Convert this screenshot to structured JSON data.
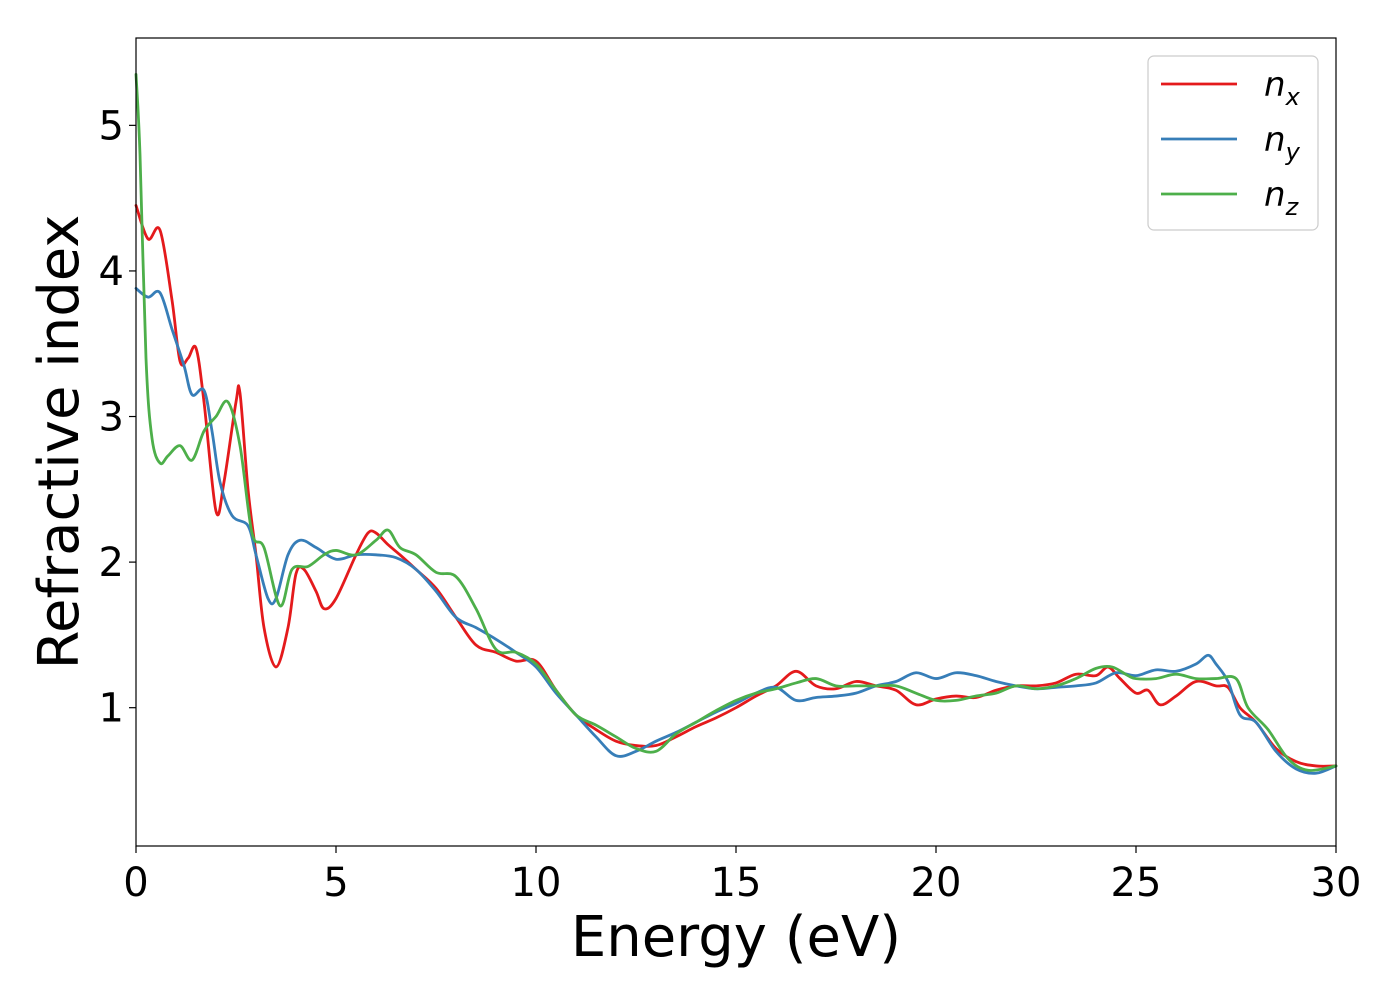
{
  "chart_data": {
    "type": "line",
    "title": "",
    "xlabel": "Energy (eV)",
    "ylabel": "Refractive index",
    "xlim": [
      0,
      30
    ],
    "ylim": [
      0.05,
      5.6
    ],
    "xticks": [
      0,
      5,
      10,
      15,
      20,
      25,
      30
    ],
    "yticks": [
      1,
      2,
      3,
      4,
      5
    ],
    "xtick_labels": [
      "0",
      "5",
      "10",
      "15",
      "20",
      "25",
      "30"
    ],
    "ytick_labels": [
      "1",
      "2",
      "3",
      "4",
      "5"
    ],
    "grid": false,
    "legend_position": "top-right",
    "series": [
      {
        "name": "n",
        "subscript": "x",
        "color": "#e41a1c",
        "points": [
          [
            0,
            4.45
          ],
          [
            0.3,
            4.22
          ],
          [
            0.6,
            4.28
          ],
          [
            0.9,
            3.8
          ],
          [
            1.1,
            3.38
          ],
          [
            1.3,
            3.4
          ],
          [
            1.5,
            3.47
          ],
          [
            1.7,
            3.1
          ],
          [
            2.0,
            2.35
          ],
          [
            2.2,
            2.55
          ],
          [
            2.5,
            3.1
          ],
          [
            2.6,
            3.16
          ],
          [
            2.8,
            2.5
          ],
          [
            3.0,
            2.05
          ],
          [
            3.2,
            1.55
          ],
          [
            3.5,
            1.28
          ],
          [
            3.8,
            1.55
          ],
          [
            4.0,
            1.92
          ],
          [
            4.2,
            1.95
          ],
          [
            4.5,
            1.8
          ],
          [
            4.7,
            1.68
          ],
          [
            5.0,
            1.75
          ],
          [
            5.5,
            2.05
          ],
          [
            5.8,
            2.2
          ],
          [
            6.0,
            2.2
          ],
          [
            6.3,
            2.12
          ],
          [
            6.6,
            2.05
          ],
          [
            7.0,
            1.95
          ],
          [
            7.5,
            1.82
          ],
          [
            8.0,
            1.62
          ],
          [
            8.5,
            1.43
          ],
          [
            9.0,
            1.38
          ],
          [
            9.5,
            1.32
          ],
          [
            10.0,
            1.32
          ],
          [
            10.5,
            1.12
          ],
          [
            11.0,
            0.95
          ],
          [
            11.5,
            0.85
          ],
          [
            12.0,
            0.77
          ],
          [
            12.5,
            0.74
          ],
          [
            13.0,
            0.74
          ],
          [
            13.5,
            0.8
          ],
          [
            14.0,
            0.87
          ],
          [
            14.5,
            0.93
          ],
          [
            15.0,
            1.0
          ],
          [
            15.5,
            1.08
          ],
          [
            16.0,
            1.15
          ],
          [
            16.5,
            1.25
          ],
          [
            17.0,
            1.15
          ],
          [
            17.5,
            1.13
          ],
          [
            18.0,
            1.18
          ],
          [
            18.5,
            1.15
          ],
          [
            19.0,
            1.12
          ],
          [
            19.5,
            1.02
          ],
          [
            20.0,
            1.06
          ],
          [
            20.5,
            1.08
          ],
          [
            21.0,
            1.07
          ],
          [
            21.5,
            1.12
          ],
          [
            22.0,
            1.15
          ],
          [
            22.5,
            1.15
          ],
          [
            23.0,
            1.17
          ],
          [
            23.5,
            1.23
          ],
          [
            24.0,
            1.22
          ],
          [
            24.3,
            1.28
          ],
          [
            24.6,
            1.2
          ],
          [
            25.0,
            1.1
          ],
          [
            25.3,
            1.12
          ],
          [
            25.6,
            1.02
          ],
          [
            26.0,
            1.08
          ],
          [
            26.5,
            1.18
          ],
          [
            27.0,
            1.15
          ],
          [
            27.3,
            1.14
          ],
          [
            27.6,
            1.0
          ],
          [
            28.0,
            0.9
          ],
          [
            28.5,
            0.72
          ],
          [
            29.0,
            0.63
          ],
          [
            29.5,
            0.6
          ],
          [
            30.0,
            0.6
          ]
        ]
      },
      {
        "name": "n",
        "subscript": "y",
        "color": "#377eb8",
        "points": [
          [
            0,
            3.88
          ],
          [
            0.3,
            3.82
          ],
          [
            0.6,
            3.85
          ],
          [
            0.9,
            3.6
          ],
          [
            1.2,
            3.35
          ],
          [
            1.4,
            3.15
          ],
          [
            1.7,
            3.18
          ],
          [
            1.9,
            2.9
          ],
          [
            2.1,
            2.55
          ],
          [
            2.4,
            2.32
          ],
          [
            2.8,
            2.25
          ],
          [
            3.0,
            2.05
          ],
          [
            3.3,
            1.75
          ],
          [
            3.5,
            1.75
          ],
          [
            3.8,
            2.05
          ],
          [
            4.1,
            2.15
          ],
          [
            4.5,
            2.1
          ],
          [
            5.0,
            2.02
          ],
          [
            5.5,
            2.05
          ],
          [
            6.0,
            2.05
          ],
          [
            6.5,
            2.03
          ],
          [
            7.0,
            1.95
          ],
          [
            7.5,
            1.8
          ],
          [
            8.0,
            1.62
          ],
          [
            8.5,
            1.55
          ],
          [
            9.0,
            1.47
          ],
          [
            9.5,
            1.38
          ],
          [
            10.0,
            1.28
          ],
          [
            10.5,
            1.1
          ],
          [
            11.0,
            0.95
          ],
          [
            11.5,
            0.8
          ],
          [
            12.0,
            0.67
          ],
          [
            12.5,
            0.7
          ],
          [
            13.0,
            0.77
          ],
          [
            13.5,
            0.83
          ],
          [
            14.0,
            0.9
          ],
          [
            14.5,
            0.97
          ],
          [
            15.0,
            1.03
          ],
          [
            15.5,
            1.1
          ],
          [
            16.0,
            1.14
          ],
          [
            16.5,
            1.05
          ],
          [
            17.0,
            1.07
          ],
          [
            17.5,
            1.08
          ],
          [
            18.0,
            1.1
          ],
          [
            18.5,
            1.15
          ],
          [
            19.0,
            1.18
          ],
          [
            19.5,
            1.24
          ],
          [
            20.0,
            1.2
          ],
          [
            20.5,
            1.24
          ],
          [
            21.0,
            1.22
          ],
          [
            21.5,
            1.18
          ],
          [
            22.0,
            1.15
          ],
          [
            22.5,
            1.13
          ],
          [
            23.0,
            1.14
          ],
          [
            23.5,
            1.15
          ],
          [
            24.0,
            1.17
          ],
          [
            24.5,
            1.24
          ],
          [
            25.0,
            1.22
          ],
          [
            25.5,
            1.26
          ],
          [
            26.0,
            1.25
          ],
          [
            26.5,
            1.3
          ],
          [
            26.8,
            1.36
          ],
          [
            27.0,
            1.3
          ],
          [
            27.3,
            1.18
          ],
          [
            27.6,
            0.95
          ],
          [
            28.0,
            0.9
          ],
          [
            28.5,
            0.7
          ],
          [
            29.0,
            0.58
          ],
          [
            29.5,
            0.55
          ],
          [
            30.0,
            0.6
          ]
        ]
      },
      {
        "name": "n",
        "subscript": "z",
        "color": "#4daf4a",
        "points": [
          [
            0,
            5.35
          ],
          [
            0.1,
            4.8
          ],
          [
            0.25,
            3.4
          ],
          [
            0.4,
            2.85
          ],
          [
            0.6,
            2.68
          ],
          [
            0.8,
            2.73
          ],
          [
            1.1,
            2.8
          ],
          [
            1.4,
            2.7
          ],
          [
            1.7,
            2.9
          ],
          [
            2.0,
            3.0
          ],
          [
            2.3,
            3.1
          ],
          [
            2.6,
            2.8
          ],
          [
            2.9,
            2.2
          ],
          [
            3.2,
            2.1
          ],
          [
            3.6,
            1.7
          ],
          [
            3.9,
            1.95
          ],
          [
            4.3,
            1.97
          ],
          [
            4.7,
            2.05
          ],
          [
            5.0,
            2.08
          ],
          [
            5.5,
            2.05
          ],
          [
            6.0,
            2.15
          ],
          [
            6.3,
            2.22
          ],
          [
            6.6,
            2.1
          ],
          [
            7.0,
            2.05
          ],
          [
            7.5,
            1.93
          ],
          [
            8.0,
            1.9
          ],
          [
            8.5,
            1.68
          ],
          [
            9.0,
            1.4
          ],
          [
            9.5,
            1.38
          ],
          [
            10.0,
            1.3
          ],
          [
            10.5,
            1.12
          ],
          [
            11.0,
            0.95
          ],
          [
            11.5,
            0.88
          ],
          [
            12.0,
            0.8
          ],
          [
            12.5,
            0.72
          ],
          [
            13.0,
            0.7
          ],
          [
            13.5,
            0.82
          ],
          [
            14.0,
            0.9
          ],
          [
            14.5,
            0.98
          ],
          [
            15.0,
            1.05
          ],
          [
            15.5,
            1.1
          ],
          [
            16.0,
            1.13
          ],
          [
            16.5,
            1.17
          ],
          [
            17.0,
            1.2
          ],
          [
            17.5,
            1.15
          ],
          [
            18.0,
            1.15
          ],
          [
            18.5,
            1.15
          ],
          [
            19.0,
            1.15
          ],
          [
            19.5,
            1.1
          ],
          [
            20.0,
            1.05
          ],
          [
            20.5,
            1.05
          ],
          [
            21.0,
            1.08
          ],
          [
            21.5,
            1.1
          ],
          [
            22.0,
            1.15
          ],
          [
            22.5,
            1.13
          ],
          [
            23.0,
            1.15
          ],
          [
            23.5,
            1.2
          ],
          [
            24.0,
            1.27
          ],
          [
            24.4,
            1.28
          ],
          [
            24.8,
            1.22
          ],
          [
            25.0,
            1.2
          ],
          [
            25.5,
            1.2
          ],
          [
            26.0,
            1.23
          ],
          [
            26.5,
            1.2
          ],
          [
            27.0,
            1.2
          ],
          [
            27.5,
            1.2
          ],
          [
            27.8,
            1.0
          ],
          [
            28.3,
            0.85
          ],
          [
            28.8,
            0.65
          ],
          [
            29.3,
            0.57
          ],
          [
            30.0,
            0.6
          ]
        ]
      }
    ]
  }
}
